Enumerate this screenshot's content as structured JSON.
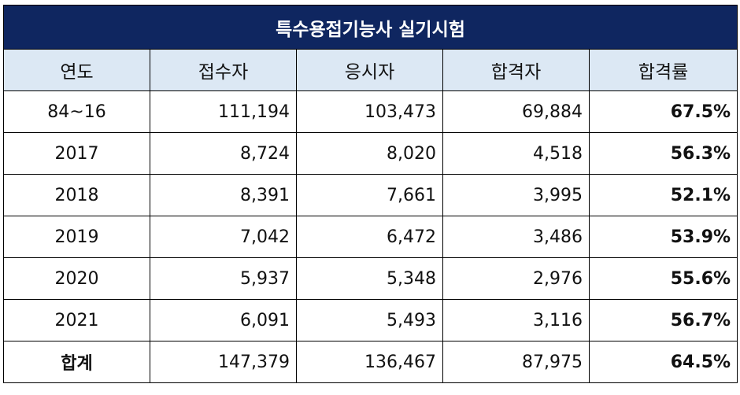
{
  "title": "특수용접기능사 실기시험",
  "headers": [
    "연도",
    "접수자",
    "응시자",
    "합격자",
    "합격률"
  ],
  "rows": [
    {
      "year": "84~16",
      "applicants": "111,194",
      "examinees": "103,473",
      "passers": "69,884",
      "rate": "67.5%"
    },
    {
      "year": "2017",
      "applicants": "8,724",
      "examinees": "8,020",
      "passers": "4,518",
      "rate": "56.3%"
    },
    {
      "year": "2018",
      "applicants": "8,391",
      "examinees": "7,661",
      "passers": "3,995",
      "rate": "52.1%"
    },
    {
      "year": "2019",
      "applicants": "7,042",
      "examinees": "6,472",
      "passers": "3,486",
      "rate": "53.9%"
    },
    {
      "year": "2020",
      "applicants": "5,937",
      "examinees": "5,348",
      "passers": "2,976",
      "rate": "55.6%"
    },
    {
      "year": "2021",
      "applicants": "6,091",
      "examinees": "5,493",
      "passers": "3,116",
      "rate": "56.7%"
    }
  ],
  "total": {
    "year": "합계",
    "applicants": "147,379",
    "examinees": "136,467",
    "passers": "87,975",
    "rate": "64.5%"
  },
  "colors": {
    "title_bg": "#0f2660",
    "header_bg": "#dce8f4"
  }
}
